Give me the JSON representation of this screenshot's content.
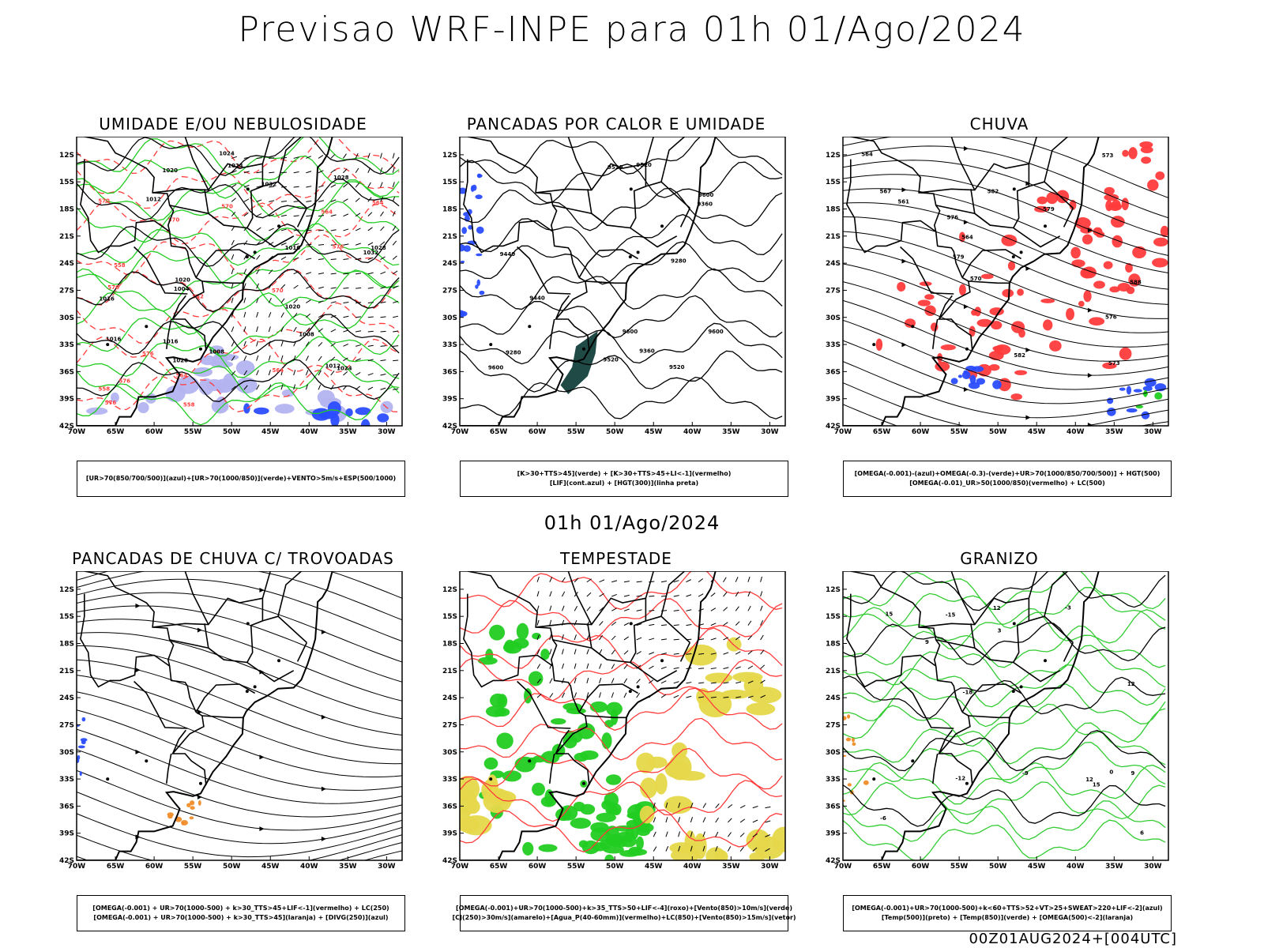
{
  "title": "Previsao WRF-INPE  para 01h 01/Ago/2024",
  "mid_date": "01h 01/Ago/2024",
  "footer": "00Z01AUG2024+[004UTC]",
  "colors": {
    "blue": "#2a4cff",
    "green": "#22cc22",
    "red": "#ff3b3b",
    "lightblue": "#b3b3f0",
    "darkgreen": "#1f4a46",
    "orange": "#f08c28",
    "yellow": "#e6d84a",
    "lightgreen": "#33cc33"
  },
  "panels": [
    {
      "title": "UMIDADE E/OU NEBULOSIDADE",
      "legend": [
        "[UR>70(850/700/500)](azul)+[UR>70(1000/850)](verde)+VENTO>5m/s+ESP(500/1000)"
      ],
      "contour_labels": [
        "1016",
        "1016",
        "1020",
        "1024",
        "1012",
        "1024",
        "1016",
        "1020",
        "1024",
        "1028",
        "1032",
        "1020",
        "1008",
        "1012",
        "1016",
        "1020",
        "1004",
        "1008",
        "1028",
        "1032",
        "576",
        "576",
        "570",
        "570",
        "564",
        "576",
        "570",
        "564",
        "558",
        "576",
        "570",
        "564",
        "558",
        "552",
        "576",
        "564",
        "558"
      ]
    },
    {
      "title": "PANCADAS POR CALOR E UMIDADE",
      "legend": [
        "[K>30+TTS>45](verde) + [K>30+TTS>45+LI<-1](vermelho)",
        "[LIF](cont.azul) + [HGT(300)](linha preta)"
      ],
      "contour_labels": [
        "9600",
        "9600",
        "9600",
        "9600",
        "9520",
        "9520",
        "9520",
        "9520",
        "9440",
        "9440",
        "9360",
        "9360",
        "9280",
        "9280"
      ]
    },
    {
      "title": "CHUVA",
      "legend": [
        "[OMEGA(-0.001)-(azul)+OMEGA(-0.3)-(verde)+UR>70(1000/850/700/500)] + HGT(500)",
        "[OMEGA(-0.01)_UR>50(1000/850)(vermelho) + LC(500)"
      ],
      "contour_labels": [
        "588",
        "582",
        "582",
        "579",
        "576",
        "576",
        "573",
        "570",
        "567",
        "564",
        "561",
        "564",
        "579",
        "573"
      ]
    },
    {
      "title": "PANCADAS DE CHUVA C/ TROVOADAS",
      "legend": [
        "[OMEGA(-0.001) + UR>70(1000-500) + k>30_TTS>45+LIF<-1](vermelho) + LC(250)",
        "[OMEGA(-0.001) + UR>70(1000-500) + k>30_TTS>45](laranja) + [DIVG(250)](azul)"
      ],
      "contour_labels": []
    },
    {
      "title": "TEMPESTADE",
      "legend": [
        "[OMEGA(-0.001)+UR>70(1000-500)+k>35_TTS>50+LIF<-4](roxo)+[Vento(850)>10m/s](verde)",
        "[CJ(250)>30m/s](amarelo)+[Agua_P(40-60mm)](vermelho)+LC(850)+[Vento(850)>15m/s](vetor)"
      ],
      "contour_labels": []
    },
    {
      "title": "GRANIZO",
      "legend": [
        "[OMEGA(-0.001)+UR>70(1000-500)+k<60+TTS>52+VT>25+SWEAT>220+LIF<-2](azul)",
        "[Temp(500)](preto) + [Temp(850)](verde) + [OMEGA(500)<-2](laranja)"
      ],
      "contour_labels": [
        "15",
        "15",
        "12",
        "12",
        "12",
        "9",
        "9",
        "6",
        "3",
        "0",
        "-3",
        "-6",
        "-9",
        "-12",
        "-15",
        "-18"
      ]
    }
  ],
  "chart_data": [
    {
      "type": "map",
      "title": "UMIDADE E/OU NEBULOSIDADE",
      "xlabel": "",
      "ylabel": "",
      "x_ticks": [
        "70W",
        "65W",
        "60W",
        "55W",
        "50W",
        "45W",
        "40W",
        "35W",
        "30W"
      ],
      "y_ticks": [
        "12S",
        "15S",
        "18S",
        "21S",
        "24S",
        "27S",
        "30S",
        "33S",
        "36S",
        "39S",
        "42S"
      ],
      "xlim": [
        -70,
        -28
      ],
      "ylim": [
        -42,
        -10
      ]
    },
    {
      "type": "map",
      "title": "PANCADAS POR CALOR E UMIDADE",
      "x_ticks": [
        "70W",
        "65W",
        "60W",
        "55W",
        "50W",
        "45W",
        "40W",
        "35W",
        "30W"
      ],
      "y_ticks": [
        "12S",
        "15S",
        "18S",
        "21S",
        "24S",
        "27S",
        "30S",
        "33S",
        "36S",
        "39S",
        "42S"
      ],
      "xlim": [
        -70,
        -28
      ],
      "ylim": [
        -42,
        -10
      ]
    },
    {
      "type": "map",
      "title": "CHUVA",
      "x_ticks": [
        "70W",
        "65W",
        "60W",
        "55W",
        "50W",
        "45W",
        "40W",
        "35W",
        "30W"
      ],
      "y_ticks": [
        "12S",
        "15S",
        "18S",
        "21S",
        "24S",
        "27S",
        "30S",
        "33S",
        "36S",
        "39S",
        "42S"
      ],
      "xlim": [
        -70,
        -28
      ],
      "ylim": [
        -42,
        -10
      ]
    },
    {
      "type": "map",
      "title": "PANCADAS DE CHUVA C/ TROVOADAS",
      "x_ticks": [
        "70W",
        "65W",
        "60W",
        "55W",
        "50W",
        "45W",
        "40W",
        "35W",
        "30W"
      ],
      "y_ticks": [
        "12S",
        "15S",
        "18S",
        "21S",
        "24S",
        "27S",
        "30S",
        "33S",
        "36S",
        "39S",
        "42S"
      ],
      "xlim": [
        -70,
        -28
      ],
      "ylim": [
        -42,
        -10
      ]
    },
    {
      "type": "map",
      "title": "TEMPESTADE",
      "x_ticks": [
        "70W",
        "65W",
        "60W",
        "55W",
        "50W",
        "45W",
        "40W",
        "35W",
        "30W"
      ],
      "y_ticks": [
        "12S",
        "15S",
        "18S",
        "21S",
        "24S",
        "27S",
        "30S",
        "33S",
        "36S",
        "39S",
        "42S"
      ],
      "xlim": [
        -70,
        -28
      ],
      "ylim": [
        -42,
        -10
      ]
    },
    {
      "type": "map",
      "title": "GRANIZO",
      "x_ticks": [
        "70W",
        "65W",
        "60W",
        "55W",
        "50W",
        "45W",
        "40W",
        "35W",
        "30W"
      ],
      "y_ticks": [
        "12S",
        "15S",
        "18S",
        "21S",
        "24S",
        "27S",
        "30S",
        "33S",
        "36S",
        "39S",
        "42S"
      ],
      "xlim": [
        -70,
        -28
      ],
      "ylim": [
        -42,
        -10
      ]
    }
  ]
}
